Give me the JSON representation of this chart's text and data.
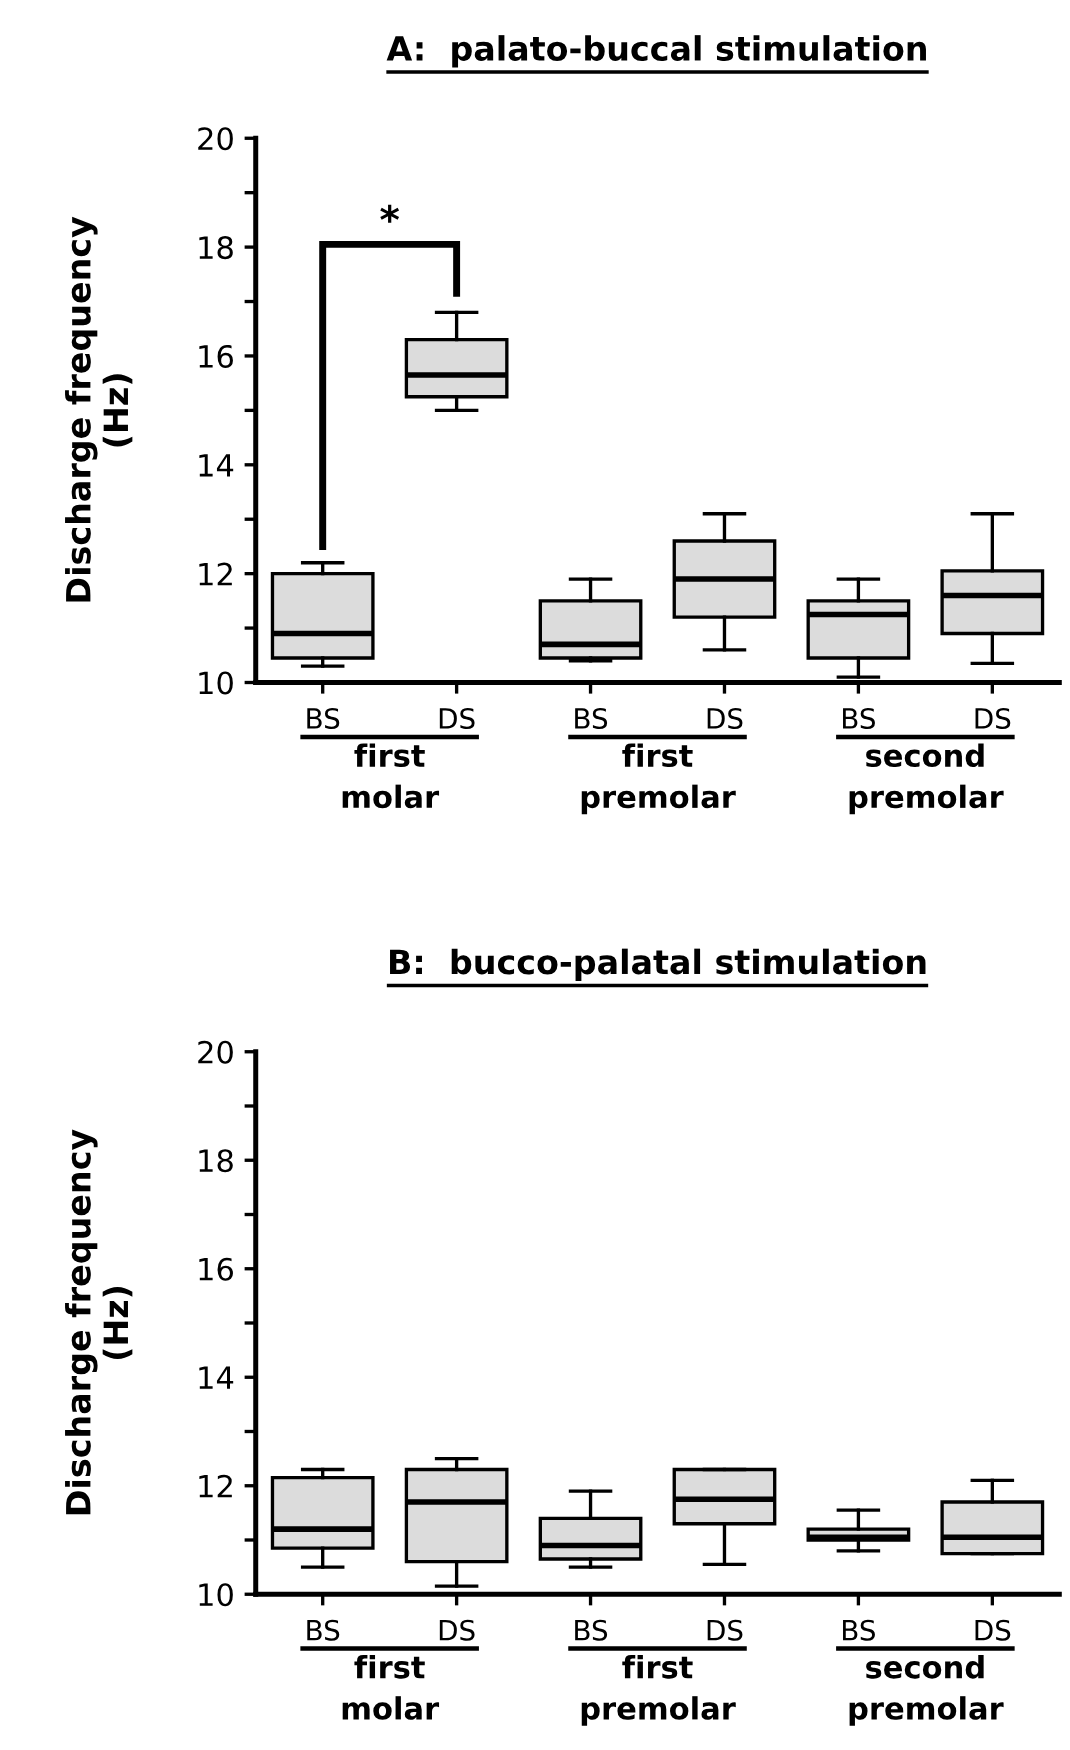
{
  "chart_data": [
    {
      "type": "box",
      "title": "A:  palato-buccal stimulation",
      "ylabel": "Discharge frequency\n(Hz)",
      "categories": [
        "BS",
        "DS",
        "BS",
        "DS",
        "BS",
        "DS"
      ],
      "boxes": [
        {
          "low": 10.3,
          "q1": 10.45,
          "median": 10.9,
          "q3": 12.0,
          "high": 12.2
        },
        {
          "low": 15.0,
          "q1": 15.25,
          "median": 15.65,
          "q3": 16.3,
          "high": 16.8
        },
        {
          "low": 10.4,
          "q1": 10.45,
          "median": 10.7,
          "q3": 11.5,
          "high": 11.9
        },
        {
          "low": 10.6,
          "q1": 11.2,
          "median": 11.9,
          "q3": 12.6,
          "high": 13.1
        },
        {
          "low": 10.1,
          "q1": 10.45,
          "median": 11.25,
          "q3": 11.5,
          "high": 11.9
        },
        {
          "low": 10.35,
          "q1": 10.9,
          "median": 11.6,
          "q3": 12.05,
          "high": 13.1
        }
      ],
      "color": "#dcdcdc",
      "ylim": [
        10,
        20
      ],
      "yticks": [
        10,
        {
          "value": 11,
          "label": null
        },
        12,
        {
          "value": 13,
          "label": null
        },
        14,
        {
          "value": 15,
          "label": null
        },
        16,
        {
          "value": 17,
          "label": null
        },
        18,
        {
          "value": 19,
          "label": null
        },
        20
      ],
      "annotations": [
        "first\nmolar",
        "first\npremolar",
        "second\npremolar",
        "*"
      ],
      "grid": false
    },
    {
      "type": "box",
      "title": "B:  bucco-palatal stimulation",
      "ylabel": "Discharge frequency\n(Hz)",
      "categories": [
        "BS",
        "DS",
        "BS",
        "DS",
        "BS",
        "DS"
      ],
      "boxes": [
        {
          "low": 10.5,
          "q1": 10.85,
          "median": 11.2,
          "q3": 12.15,
          "high": 12.3
        },
        {
          "low": 10.15,
          "q1": 10.6,
          "median": 11.7,
          "q3": 12.3,
          "high": 12.5
        },
        {
          "low": 10.5,
          "q1": 10.65,
          "median": 10.9,
          "q3": 11.4,
          "high": 11.9
        },
        {
          "low": 10.55,
          "q1": 11.3,
          "median": 11.75,
          "q3": 12.3,
          "high": 12.3
        },
        {
          "low": 10.8,
          "q1": 11.0,
          "median": 11.05,
          "q3": 11.2,
          "high": 11.55
        },
        {
          "low": 10.75,
          "q1": 10.75,
          "median": 11.05,
          "q3": 11.7,
          "high": 12.1
        }
      ],
      "color": "#dcdcdc",
      "ylim": [
        10,
        20
      ],
      "yticks": [
        10,
        {
          "value": 11,
          "label": null
        },
        12,
        {
          "value": 13,
          "label": null
        },
        14,
        {
          "value": 15,
          "label": null
        },
        16,
        {
          "value": 17,
          "label": null
        },
        18,
        {
          "value": 19,
          "label": null
        },
        20
      ],
      "annotations": [
        "first\nmolar",
        "first\npremolar",
        "second\npremolar"
      ],
      "grid": false
    }
  ]
}
